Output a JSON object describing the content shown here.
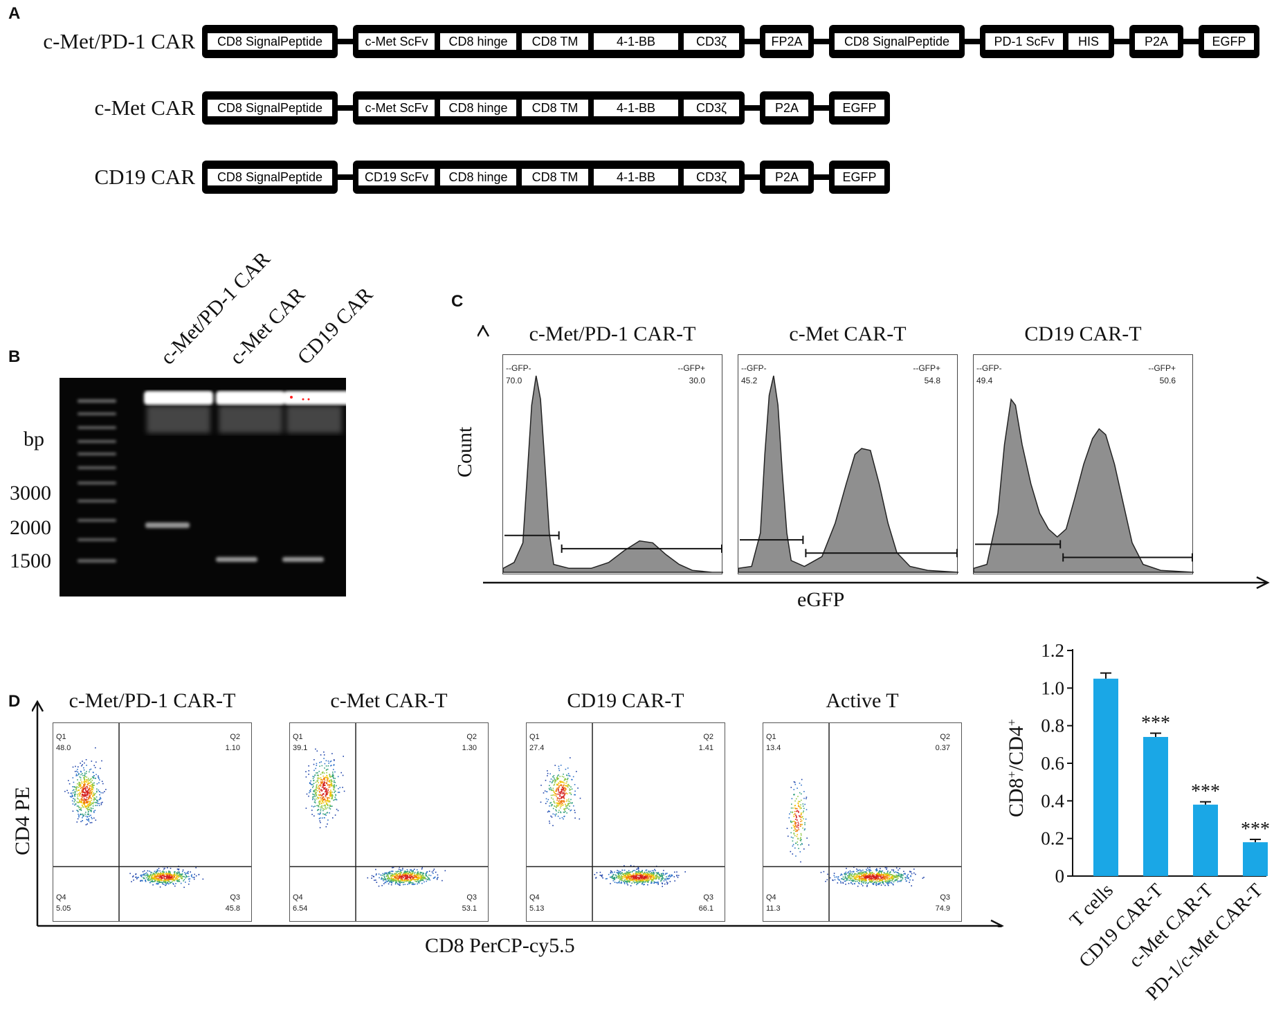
{
  "panel_labels": {
    "a": "A",
    "b": "B",
    "c": "C",
    "d": "D"
  },
  "panel_a": {
    "constructs": [
      {
        "name": "c-Met/PD-1 CAR",
        "blocks": [
          [
            "CD8 SignalPeptide"
          ],
          [
            "c-Met ScFv",
            "CD8 hinge",
            "CD8 TM",
            "4-1-BB",
            "CD3ζ"
          ],
          [
            "FP2A"
          ],
          [
            "CD8 SignalPeptide"
          ],
          [
            "PD-1 ScFv",
            "HIS"
          ],
          [
            "P2A"
          ],
          [
            "EGFP"
          ]
        ]
      },
      {
        "name": "c-Met CAR",
        "blocks": [
          [
            "CD8 SignalPeptide"
          ],
          [
            "c-Met ScFv",
            "CD8 hinge",
            "CD8 TM",
            "4-1-BB",
            "CD3ζ"
          ],
          [
            "P2A"
          ],
          [
            "EGFP"
          ]
        ]
      },
      {
        "name": "CD19 CAR",
        "blocks": [
          [
            "CD8 SignalPeptide"
          ],
          [
            "CD19 ScFv",
            "CD8 hinge",
            "CD8 TM",
            "4-1-BB",
            "CD3ζ"
          ],
          [
            "P2A"
          ],
          [
            "EGFP"
          ]
        ]
      }
    ]
  },
  "panel_b": {
    "lanes": [
      "c-Met/PD-1 CAR",
      "c-Met CAR",
      "CD19 CAR"
    ],
    "unit": "bp",
    "markers": [
      "3000",
      "2000",
      "1500"
    ]
  },
  "panel_c": {
    "y_label": "Count",
    "x_label": "eGFP",
    "plots": [
      {
        "title": "c-Met/PD-1 CAR-T",
        "neg_label": "--GFP-",
        "neg_value": "70.0",
        "pos_label": "--GFP+",
        "pos_value": "30.0"
      },
      {
        "title": "c-Met CAR-T",
        "neg_label": "--GFP-",
        "neg_value": "45.2",
        "pos_label": "--GFP+",
        "pos_value": "54.8"
      },
      {
        "title": "CD19 CAR-T",
        "neg_label": "--GFP-",
        "neg_value": "49.4",
        "pos_label": "--GFP+",
        "pos_value": "50.6"
      }
    ]
  },
  "panel_d": {
    "y_label": "CD4 PE",
    "x_label": "CD8 PerCP-cy5.5",
    "plots": [
      {
        "title": "c-Met/PD-1 CAR-T",
        "q1": "48.0",
        "q2": "1.10",
        "q3": "45.8",
        "q4": "5.05"
      },
      {
        "title": "c-Met CAR-T",
        "q1": "39.1",
        "q2": "1.30",
        "q3": "53.1",
        "q4": "6.54"
      },
      {
        "title": "CD19 CAR-T",
        "q1": "27.4",
        "q2": "1.41",
        "q3": "66.1",
        "q4": "5.13"
      },
      {
        "title": "Active T",
        "q1": "13.4",
        "q2": "0.37",
        "q3": "74.9",
        "q4": "11.3"
      }
    ],
    "quadrant_names": {
      "q1": "Q1",
      "q2": "Q2",
      "q3": "Q3",
      "q4": "Q4"
    }
  },
  "chart_data": {
    "type": "bar",
    "categories": [
      "T cells",
      "CD19 CAR-T",
      "c-Met CAR-T",
      "PD-1/c-Met CAR-T"
    ],
    "values": [
      1.05,
      0.74,
      0.38,
      0.18
    ],
    "errors": [
      0.03,
      0.02,
      0.015,
      0.015
    ],
    "significance": [
      "",
      "***",
      "***",
      "***"
    ],
    "ylabel": "CD8+/CD4+",
    "ylim": [
      0,
      1.2
    ],
    "yticks": [
      "0",
      "0.2",
      "0.4",
      "0.6",
      "0.8",
      "1.0",
      "1.2"
    ],
    "color": "#1aa7e6"
  }
}
